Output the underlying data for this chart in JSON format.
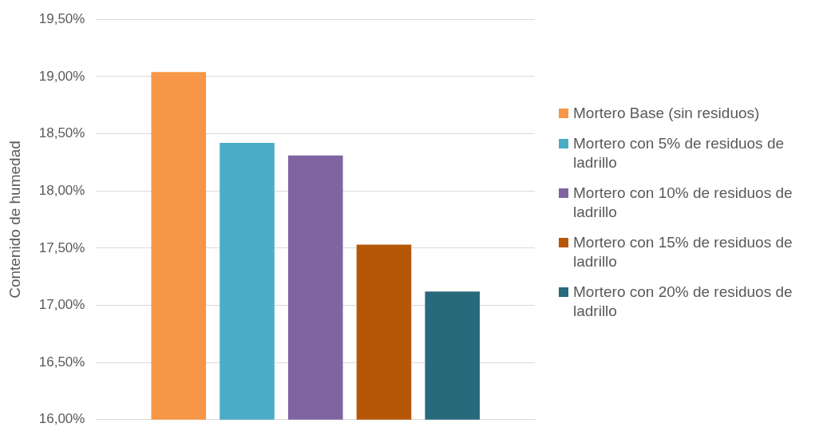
{
  "chart_data": {
    "type": "bar",
    "ylabel": "Contenido de humedad",
    "categories": [
      null
    ],
    "series": [
      {
        "name": "Mortero Base (sin residuos)",
        "color": "#f79646",
        "values": [
          19.04
        ]
      },
      {
        "name": "Mortero con 5% de residuos de ladrillo",
        "color": "#4bacc6",
        "values": [
          18.42
        ]
      },
      {
        "name": "Mortero con 10% de residuos de ladrillo",
        "color": "#8064a2",
        "values": [
          18.31
        ]
      },
      {
        "name": "Mortero con 15% de residuos de ladrillo",
        "color": "#b65708",
        "values": [
          17.53
        ]
      },
      {
        "name": "Mortero con 20% de residuos de ladrillo",
        "color": "#276a7c",
        "values": [
          17.12
        ]
      }
    ],
    "ylim": [
      16,
      19.5
    ],
    "yticks": [
      {
        "value": 16,
        "label": "16,00%"
      },
      {
        "value": 16.5,
        "label": "16,50%"
      },
      {
        "value": 17,
        "label": "17,00%"
      },
      {
        "value": 17.5,
        "label": "17,50%"
      },
      {
        "value": 18,
        "label": "18,00%"
      },
      {
        "value": 18.5,
        "label": "18,50%"
      },
      {
        "value": 19,
        "label": "19,00%"
      },
      {
        "value": 19.5,
        "label": "19,50%"
      }
    ],
    "grid": "y",
    "legend": "right",
    "tick_labels": "y"
  }
}
